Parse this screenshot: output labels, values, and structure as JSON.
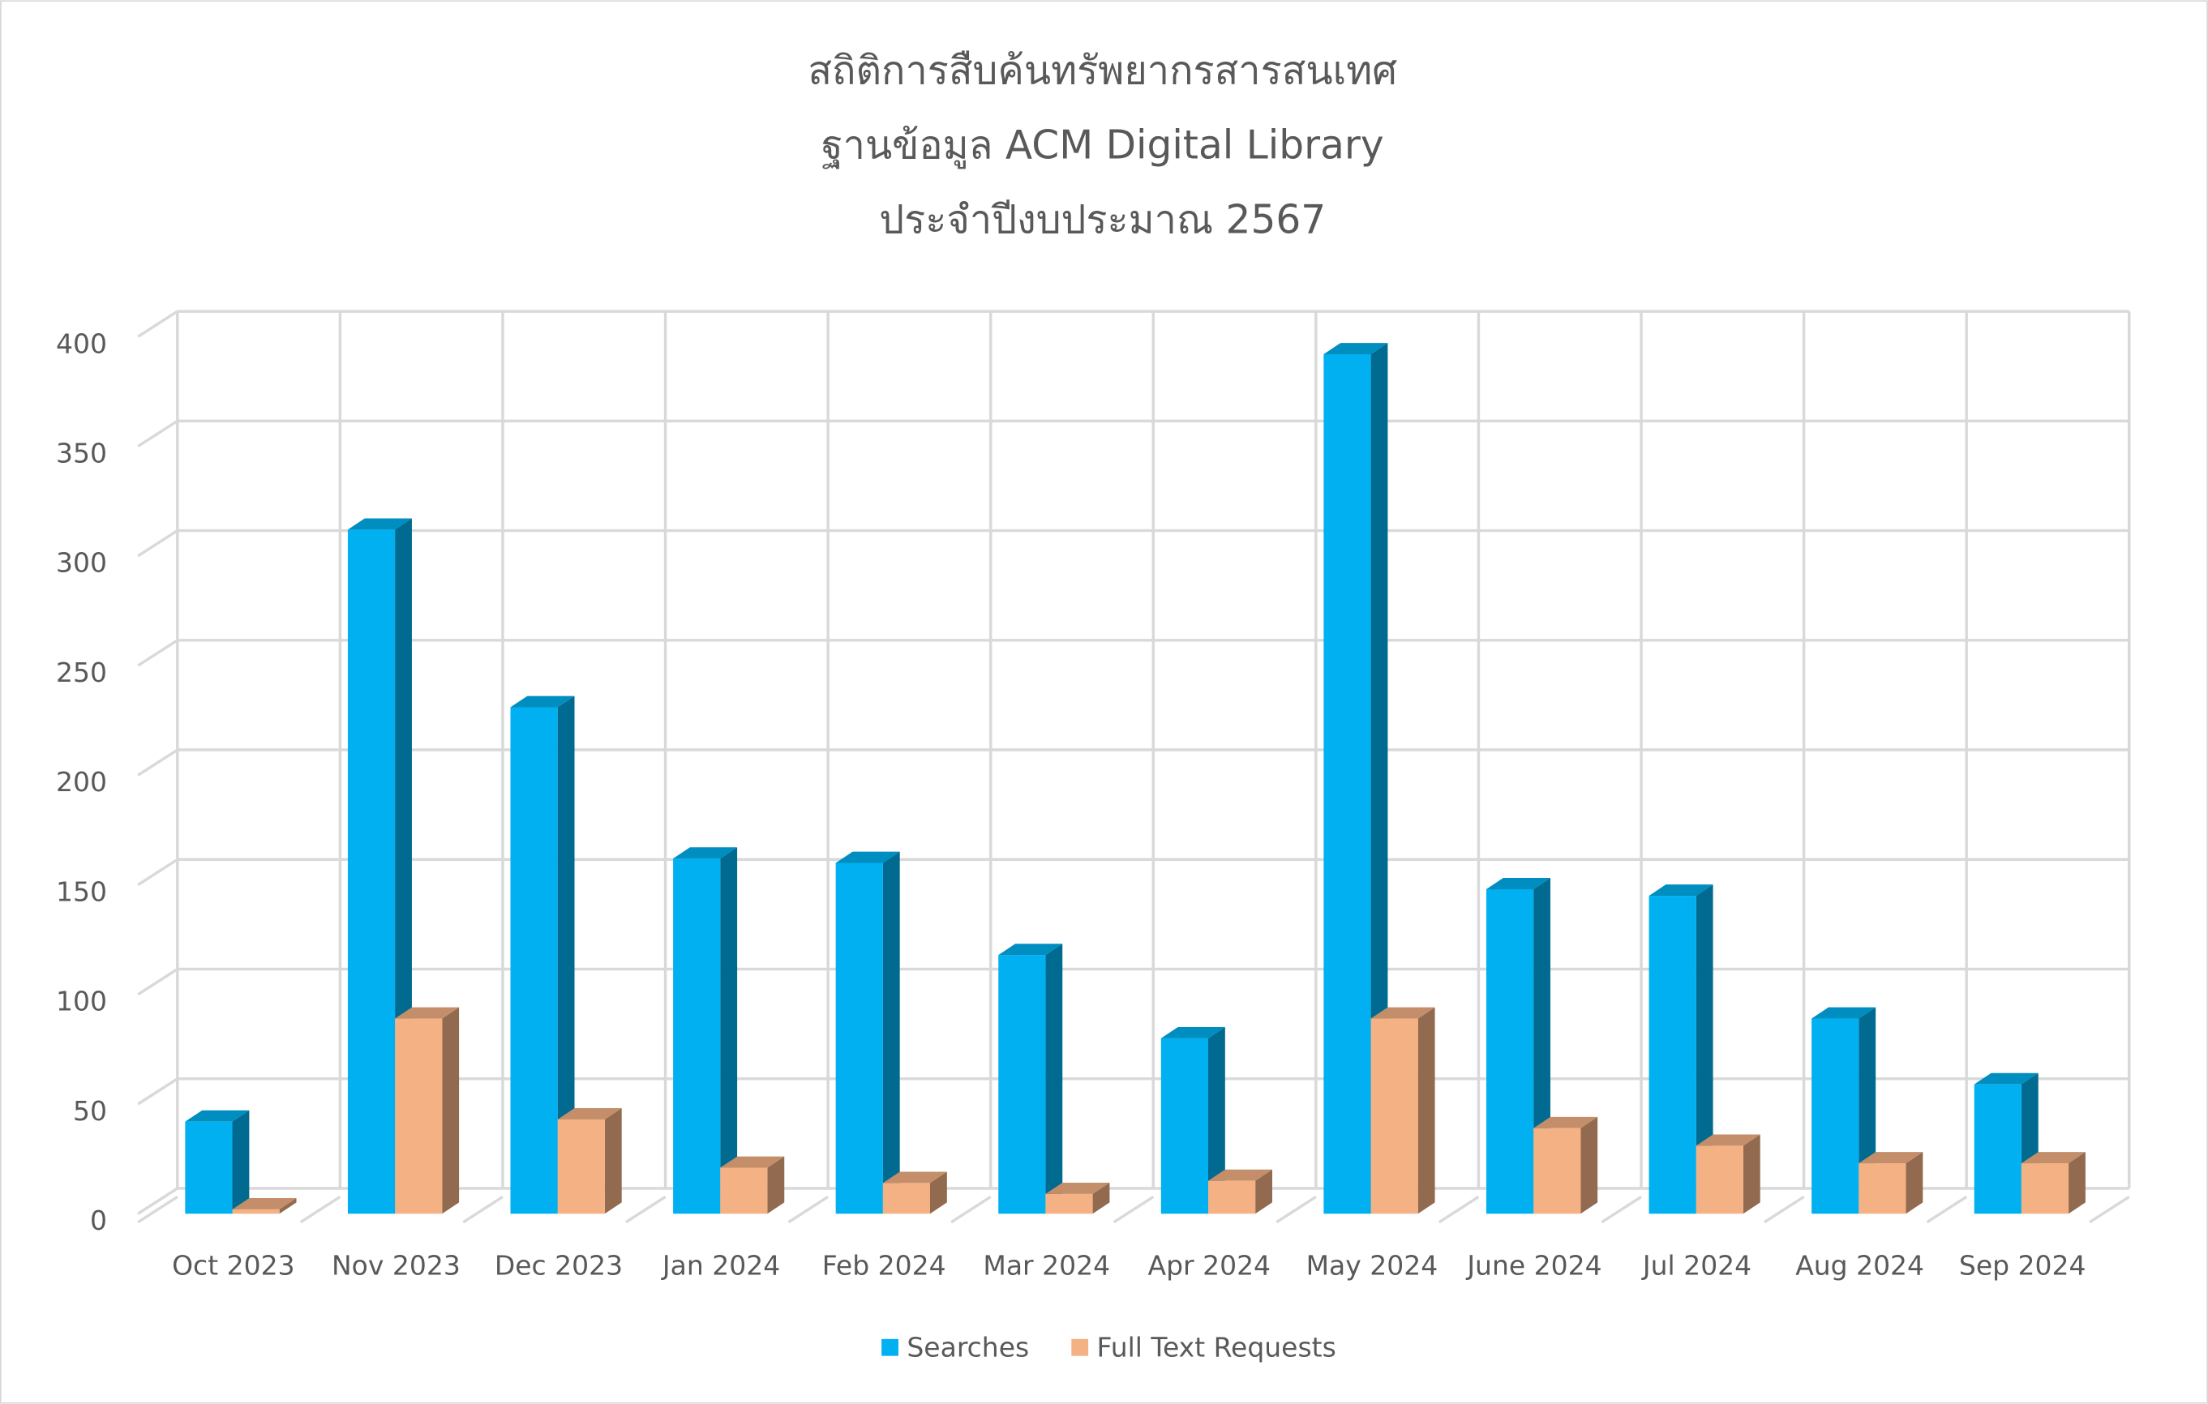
{
  "chart_data": {
    "type": "bar3d",
    "title": [
      "สถิติการสืบค้นทรัพยากรสารสนเทศ",
      "ฐานข้อมูล ACM Digital Library",
      "ประจำปีงบประมาณ 2567"
    ],
    "categories": [
      "Oct 2023",
      "Nov 2023",
      "Dec 2023",
      "Jan 2024",
      "Feb 2024",
      "Mar 2024",
      "Apr 2024",
      "May 2024",
      "June 2024",
      "Jul 2024",
      "Aug 2024",
      "Sep 2024"
    ],
    "series": [
      {
        "name": "Searches",
        "color": "#00b0f0",
        "values": [
          42,
          312,
          231,
          162,
          160,
          118,
          80,
          392,
          148,
          145,
          89,
          59
        ]
      },
      {
        "name": "Full Text Requests",
        "color": "#f4b183",
        "values": [
          2,
          89,
          43,
          21,
          14,
          9,
          15,
          89,
          39,
          31,
          23,
          23
        ]
      }
    ],
    "ylim": [
      0,
      400
    ],
    "yticks": [
      0,
      50,
      100,
      150,
      200,
      250,
      300,
      350,
      400
    ],
    "grid": true,
    "legend": "bottom"
  }
}
